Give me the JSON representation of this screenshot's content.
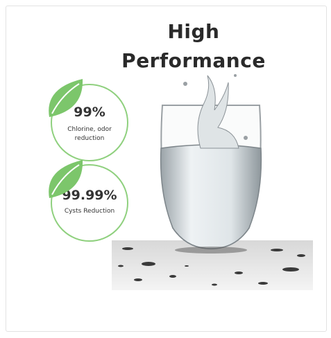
{
  "title_lines": [
    "High",
    "Performance"
  ],
  "badges": [
    {
      "value": "99%",
      "label": "Chlorine, odor reduction"
    },
    {
      "value": "99.99%",
      "label": "Cysts Reduction"
    }
  ]
}
